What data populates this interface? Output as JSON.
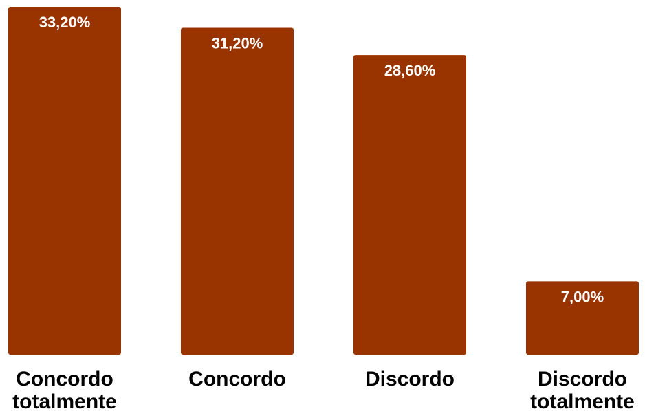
{
  "chart_data": {
    "type": "bar",
    "title": "",
    "xlabel": "",
    "ylabel": "",
    "categories": [
      [
        "Concordo",
        "totalmente"
      ],
      [
        "Concordo"
      ],
      [
        "Discordo"
      ],
      [
        "Discordo",
        "totalmente"
      ]
    ],
    "values": [
      33.2,
      31.2,
      28.6,
      7.0
    ],
    "value_labels": [
      "33,20%",
      "31,20%",
      "28,60%",
      "7,00%"
    ],
    "ylim": [
      0,
      33.2
    ],
    "grid": false,
    "legend": "none",
    "bar_color": "#993300",
    "label_color": "#ffffff",
    "category_color": "#000000"
  }
}
